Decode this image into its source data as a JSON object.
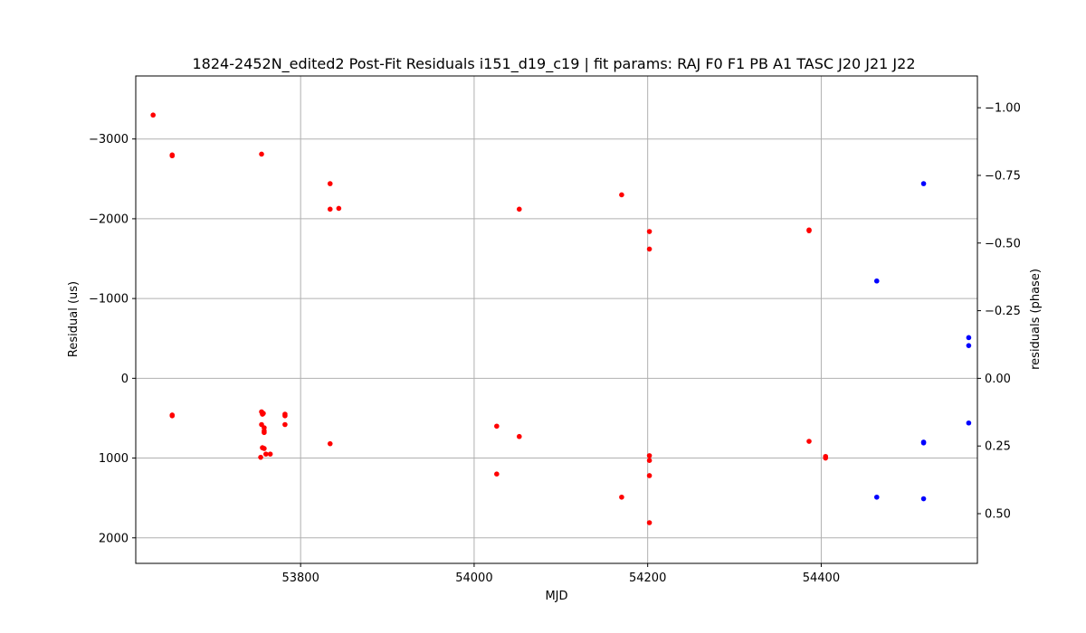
{
  "chart_data": {
    "type": "scatter",
    "title": "1824-2452N_edited2 Post-Fit Residuals i151_d19_c19 | fit params: RAJ F0 F1 PB A1 TASC J20 J21 J22",
    "xlabel": "MJD",
    "ylabel": "Residual (us)",
    "ylabel_right": "residuals (phase)",
    "xlim": [
      53610,
      54580
    ],
    "ylim": [
      2320,
      -3790
    ],
    "ylim_right": [
      0.6837,
      -1.1174
    ],
    "y_inverted": true,
    "grid": true,
    "x_ticks": [
      53800,
      54000,
      54200,
      54400
    ],
    "y_ticks": [
      -3000,
      -2000,
      -1000,
      0,
      1000,
      2000
    ],
    "y_ticks_right": [
      -1.0,
      -0.75,
      -0.5,
      -0.25,
      0.0,
      0.25,
      0.5
    ],
    "y_tick_labels": [
      "−3000",
      "−2000",
      "−1000",
      "0",
      "1000",
      "2000"
    ],
    "y_tick_labels_right": [
      "−1.00",
      "−0.75",
      "−0.50",
      "−0.25",
      "0.00",
      "0.25",
      "0.50"
    ],
    "series": [
      {
        "color": "#ff0000",
        "points": [
          [
            53630,
            -3300
          ],
          [
            53652,
            -2800
          ],
          [
            53652,
            -2790
          ],
          [
            53652,
            460
          ],
          [
            53652,
            470
          ],
          [
            53755,
            -2810
          ],
          [
            53755,
            420
          ],
          [
            53757,
            440
          ],
          [
            53756,
            450
          ],
          [
            53755,
            580
          ],
          [
            53758,
            620
          ],
          [
            53758,
            660
          ],
          [
            53758,
            680
          ],
          [
            53756,
            870
          ],
          [
            53758,
            880
          ],
          [
            53760,
            950
          ],
          [
            53765,
            950
          ],
          [
            53754,
            990
          ],
          [
            53782,
            450
          ],
          [
            53782,
            470
          ],
          [
            53782,
            580
          ],
          [
            53834,
            -2440
          ],
          [
            53834,
            -2120
          ],
          [
            53844,
            -2130
          ],
          [
            53834,
            820
          ],
          [
            54026,
            600
          ],
          [
            54026,
            1200
          ],
          [
            54052,
            -2120
          ],
          [
            54052,
            730
          ],
          [
            54170,
            -2300
          ],
          [
            54170,
            1490
          ],
          [
            54202,
            -1840
          ],
          [
            54202,
            -1620
          ],
          [
            54202,
            970
          ],
          [
            54202,
            1030
          ],
          [
            54202,
            1220
          ],
          [
            54202,
            1810
          ],
          [
            54386,
            -1860
          ],
          [
            54386,
            -1850
          ],
          [
            54386,
            790
          ],
          [
            54405,
            980
          ],
          [
            54405,
            1000
          ]
        ]
      },
      {
        "color": "#0000ff",
        "points": [
          [
            54518,
            -2440
          ],
          [
            54464,
            -1220
          ],
          [
            54464,
            1490
          ],
          [
            54518,
            800
          ],
          [
            54518,
            810
          ],
          [
            54518,
            1510
          ],
          [
            54570,
            -510
          ],
          [
            54570,
            -410
          ],
          [
            54570,
            560
          ]
        ]
      }
    ]
  }
}
